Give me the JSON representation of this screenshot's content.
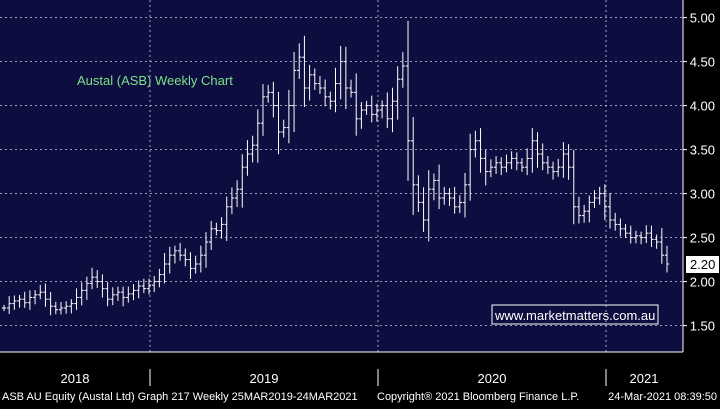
{
  "chart_data": {
    "type": "ohlc",
    "title": "Austal (ASB) Weekly Chart",
    "watermark": "www.marketmatters.com.au",
    "footer": {
      "left": "ASB AU Equity (Austal Ltd) Graph 217  Weekly 25MAR2019-24MAR2021",
      "center": "Copyright® 2021 Bloomberg Finance L.P.",
      "right": "24-Mar-2021 08:39:50"
    },
    "x_labels": [
      "2018",
      "2019",
      "2020",
      "2021"
    ],
    "y_ticks": [
      "1.50",
      "2.00",
      "2.50",
      "3.00",
      "3.50",
      "4.00",
      "4.50",
      "5.00"
    ],
    "ylim": [
      1.2,
      5.2
    ],
    "last_price": "2.20",
    "grid": true,
    "colors": {
      "plot_bg": "#0d0d3f",
      "grid": "#c8c8dc",
      "bars": "#ffffff",
      "title": "#7ee08a",
      "watermark": "#ffffff"
    },
    "y_values": [
      1.7,
      1.75,
      1.78,
      1.8,
      1.76,
      1.82,
      1.85,
      1.88,
      1.8,
      1.72,
      1.68,
      1.7,
      1.72,
      1.75,
      1.82,
      1.9,
      1.98,
      2.05,
      2.0,
      1.92,
      1.8,
      1.85,
      1.88,
      1.82,
      1.86,
      1.9,
      1.95,
      1.92,
      1.96,
      2.0,
      2.08,
      2.2,
      2.3,
      2.35,
      2.3,
      2.25,
      2.15,
      2.2,
      2.3,
      2.45,
      2.6,
      2.58,
      2.65,
      2.85,
      2.95,
      3.05,
      3.3,
      3.45,
      3.55,
      3.8,
      4.1,
      4.15,
      4.0,
      3.7,
      3.75,
      4.0,
      4.4,
      4.55,
      4.2,
      4.35,
      4.25,
      4.2,
      4.1,
      4.05,
      4.25,
      4.5,
      4.2,
      4.15,
      3.85,
      3.95,
      4.0,
      3.9,
      3.95,
      4.0,
      3.85,
      4.05,
      4.3,
      4.45,
      3.6,
      3.1,
      2.9,
      2.7,
      3.05,
      3.15,
      2.95,
      3.0,
      2.95,
      2.85,
      2.9,
      3.1,
      3.5,
      3.6,
      3.4,
      3.25,
      3.3,
      3.35,
      3.3,
      3.35,
      3.4,
      3.35,
      3.3,
      3.4,
      3.6,
      3.45,
      3.35,
      3.3,
      3.25,
      3.3,
      3.45,
      3.3,
      2.85,
      2.75,
      2.8,
      2.9,
      2.95,
      3.0,
      2.85,
      2.7,
      2.65,
      2.6,
      2.55,
      2.5,
      2.52,
      2.5,
      2.55,
      2.48,
      2.45,
      2.3,
      2.2
    ]
  }
}
